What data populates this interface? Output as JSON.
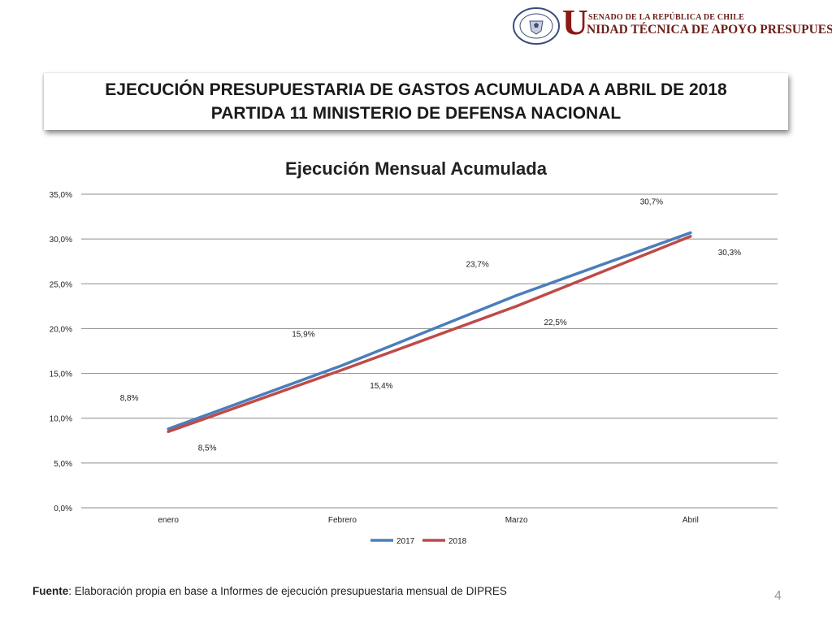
{
  "header": {
    "logo_initial": "U",
    "logo_line1": "SENADO DE LA REPÚBLICA DE CHILE",
    "logo_line2": "NIDAD TÉCNICA DE APOYO PRESUPUESTARIO",
    "seal_text_top": "REPÚBLICA DE CHILE",
    "seal_text_bottom": "SENADO"
  },
  "title": {
    "line1": "EJECUCIÓN PRESUPUESTARIA DE GASTOS ACUMULADA A ABRIL DE 2018",
    "line2": "PARTIDA 11 MINISTERIO DE DEFENSA NACIONAL"
  },
  "footer": {
    "source_label": "Fuente",
    "source_text": ": Elaboración propia en base  a Informes de ejecución presupuestaria mensual de DIPRES",
    "page_number": "4"
  },
  "colors": {
    "series_2017": "#4a7ebb",
    "series_2018": "#be4b48",
    "grid": "#8c8c8c"
  },
  "chart_data": {
    "type": "line",
    "title": "Ejecución Mensual Acumulada",
    "categories": [
      "enero",
      "Febrero",
      "Marzo",
      "Abril"
    ],
    "series": [
      {
        "name": "2017",
        "values": [
          8.8,
          15.9,
          23.7,
          30.7
        ],
        "labels": [
          "8,8%",
          "15,9%",
          "23,7%",
          "30,7%"
        ]
      },
      {
        "name": "2018",
        "values": [
          8.5,
          15.4,
          22.5,
          30.3
        ],
        "labels": [
          "8,5%",
          "15,4%",
          "22,5%",
          "30,3%"
        ]
      }
    ],
    "ylim": [
      0,
      35
    ],
    "yticks": [
      "0,0%",
      "5,0%",
      "10,0%",
      "15,0%",
      "20,0%",
      "25,0%",
      "30,0%",
      "35,0%"
    ],
    "grid": true,
    "legend": "bottom"
  }
}
